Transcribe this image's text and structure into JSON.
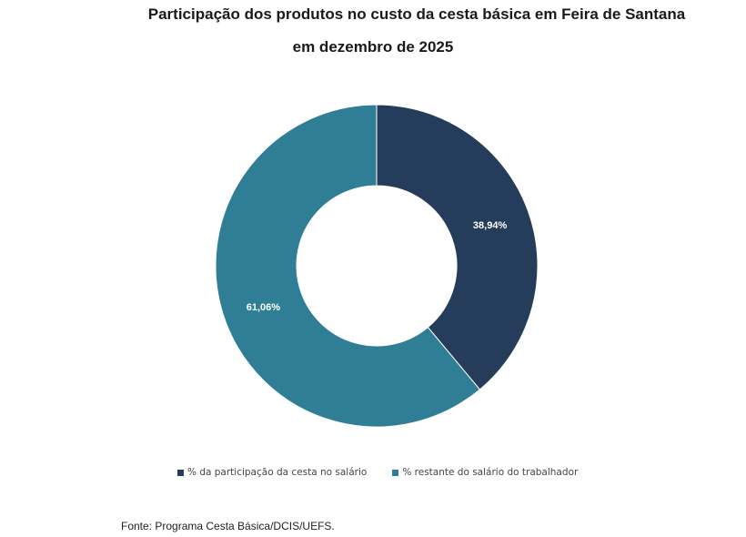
{
  "chart_data": {
    "type": "pie",
    "donut": true,
    "title": "Participação dos produtos no custo da cesta básica em Feira de Santana",
    "subtitle": "em dezembro de 2025",
    "slices": [
      {
        "label": "% da participação da cesta no salário",
        "value": 38.94,
        "display": "38,94%",
        "color": "#253c5a"
      },
      {
        "label": "% restante do salário do trabalhador",
        "value": 61.06,
        "display": "61,06%",
        "color": "#2f7e96"
      }
    ],
    "legend_position": "bottom",
    "source": "Fonte: Programa Cesta Básica/DCIS/UEFS."
  }
}
